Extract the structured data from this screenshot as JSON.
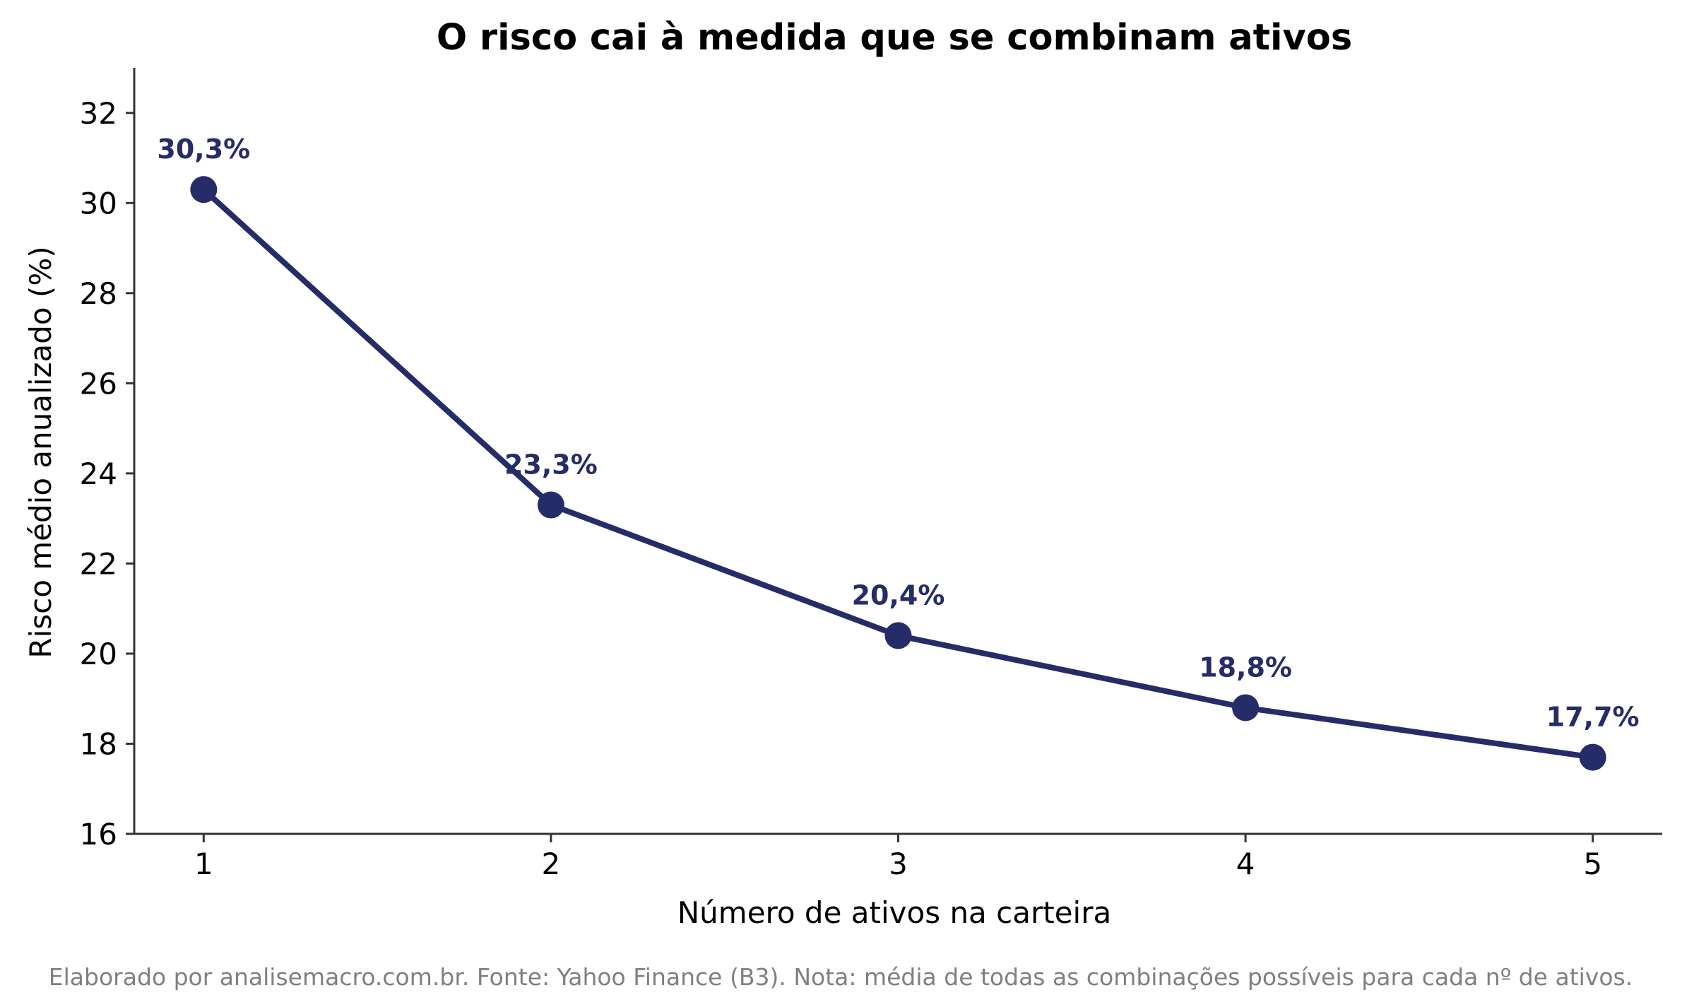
{
  "colors": {
    "series": "#262c68",
    "axis": "#333333",
    "footer": "#808080"
  },
  "footer": {
    "note": "Elaborado por analisemacro.com.br. Fonte: Yahoo Finance (B3). Nota: média de todas as combinações possíveis para cada nº de ativos."
  },
  "chart_data": {
    "type": "line",
    "title": "O risco cai à medida que se combinam ativos",
    "xlabel": "Número de ativos na carteira",
    "ylabel": "Risco médio anualizado (%)",
    "x": [
      1,
      2,
      3,
      4,
      5
    ],
    "series": [
      {
        "values": [
          30.3,
          23.3,
          20.4,
          18.8,
          17.7
        ],
        "labels": [
          "30,3%",
          "23,3%",
          "20,4%",
          "18,8%",
          "17,7%"
        ],
        "color": "#262c68",
        "marker": "circle"
      }
    ],
    "xlim": [
      0.8,
      5.2
    ],
    "ylim": [
      16,
      33
    ],
    "xticks": [
      1,
      2,
      3,
      4,
      5
    ],
    "yticks": [
      16,
      18,
      20,
      22,
      24,
      26,
      28,
      30,
      32
    ],
    "grid": false,
    "legend": "none",
    "spines": [
      "left",
      "bottom"
    ]
  }
}
